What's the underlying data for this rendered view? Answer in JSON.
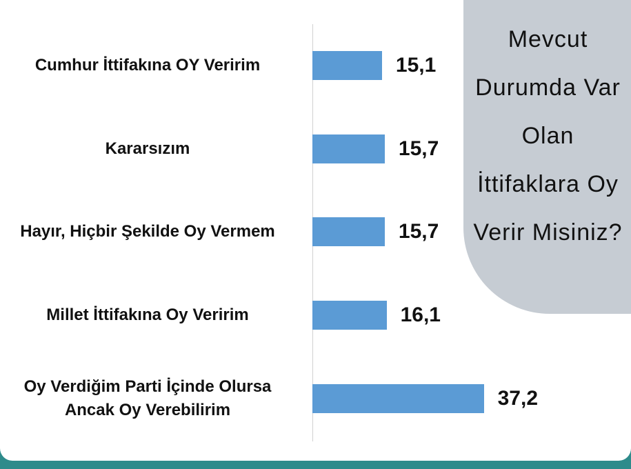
{
  "chart_data": {
    "type": "bar",
    "orientation": "horizontal",
    "title": "Mevcut Durumda Var Olan İttifaklara Oy Verir Misiniz?",
    "categories": [
      "Cumhur İttifakına OY Veririm",
      "Kararsızım",
      "Hayır, Hiçbir Şekilde Oy Vermem",
      "Millet İttifakına Oy Veririm",
      "Oy Verdiğim Parti İçinde Olursa Ancak Oy Verebilirim"
    ],
    "values": [
      15.1,
      15.7,
      15.7,
      16.1,
      37.2
    ],
    "value_labels": [
      "15,1",
      "15,7",
      "15,7",
      "16,1",
      "37,2"
    ],
    "color": "#5b9bd5",
    "xlim": [
      0,
      60
    ]
  }
}
